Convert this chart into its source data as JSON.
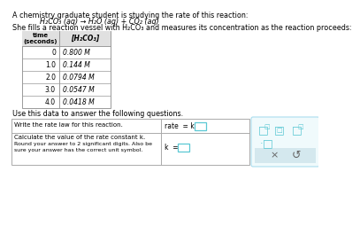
{
  "title_text": "A chemistry graduate student is studying the rate of this reaction:",
  "reaction": "H₂CO₃ (aq) → H₂O (aq) + CO₂ (aq)",
  "description": "She fills a reaction vessel with H₂CO₃ and measures its concentration as the reaction proceeds:",
  "table_header_col1": "time\n(seconds)",
  "table_header_col2": "[H₂CO₃]",
  "table_data": [
    [
      "0",
      "0.800 M"
    ],
    [
      "1.0",
      "0.144 M"
    ],
    [
      "2.0",
      "0.0794 M"
    ],
    [
      "3.0",
      "0.0547 M"
    ],
    [
      "4.0",
      "0.0418 M"
    ]
  ],
  "use_text": "Use this data to answer the following questions.",
  "q1_label": "Write the rate law for this reaction.",
  "q1_rate_text": "rate  = k",
  "q2_label1": "Calculate the value of the rate constant k.",
  "q2_label2": "Round your answer to 2 significant digits. Also be",
  "q2_label3": "sure your answer has the correct unit symbol.",
  "q2_k_text": "k  =",
  "bg_color": "#ffffff",
  "table_border_color": "#999999",
  "table_header_bg": "#e0e0e0",
  "answer_box_color": "#5bc8d4",
  "panel_border_color": "#aaddee",
  "panel_bg": "#f0fafc",
  "panel_bottom_bg": "#d4e8ee",
  "text_color": "#000000",
  "icon_color": "#5bc8d4",
  "fs_title": 5.8,
  "fs_table": 5.5,
  "fs_q": 5.0,
  "fs_ans": 5.5
}
